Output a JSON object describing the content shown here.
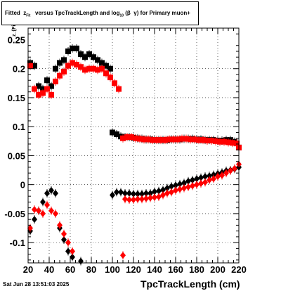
{
  "chart_data": {
    "type": "scatter",
    "title": "Fitted z_{Fit} versus TpcTrackLength and log_{10}(βγ) for Primary muon+",
    "xlabel": "TpcTrackLength (cm)",
    "ylabel": "z_{Fit}",
    "xlim": [
      20,
      220
    ],
    "ylim": [
      -0.135,
      0.27
    ],
    "x_ticks": [
      20,
      40,
      60,
      80,
      100,
      120,
      140,
      160,
      180,
      200,
      220
    ],
    "y_ticks": [
      -0.1,
      -0.05,
      0,
      0.05,
      0.1,
      0.15,
      0.2
    ],
    "y_tick_labels": [
      "-0.1",
      "-0.05",
      "0",
      "0.05",
      "0.1",
      "0.15",
      "0.2"
    ],
    "y_top_label": "0.25",
    "grid": true,
    "series": [
      {
        "marker": "square",
        "color": "#000000",
        "points": [
          [
            22,
            0.21
          ],
          [
            26,
            0.205
          ],
          [
            30,
            0.17
          ],
          [
            34,
            0.165
          ],
          [
            38,
            0.18
          ],
          [
            42,
            0.17
          ],
          [
            46,
            0.2
          ],
          [
            50,
            0.21
          ],
          [
            54,
            0.215
          ],
          [
            58,
            0.23
          ],
          [
            62,
            0.235
          ],
          [
            66,
            0.235
          ],
          [
            70,
            0.225
          ],
          [
            74,
            0.22
          ],
          [
            78,
            0.225
          ],
          [
            82,
            0.22
          ],
          [
            86,
            0.215
          ],
          [
            90,
            0.21
          ],
          [
            94,
            0.205
          ],
          [
            98,
            0.2
          ],
          [
            100,
            0.09
          ],
          [
            104,
            0.087
          ],
          [
            108,
            0.083
          ],
          [
            112,
            0.082
          ],
          [
            116,
            0.082
          ],
          [
            120,
            0.081
          ],
          [
            124,
            0.08
          ],
          [
            128,
            0.079
          ],
          [
            132,
            0.078
          ],
          [
            136,
            0.078
          ],
          [
            140,
            0.077
          ],
          [
            144,
            0.077
          ],
          [
            148,
            0.077
          ],
          [
            152,
            0.077
          ],
          [
            156,
            0.078
          ],
          [
            160,
            0.078
          ],
          [
            164,
            0.078
          ],
          [
            168,
            0.079
          ],
          [
            172,
            0.079
          ],
          [
            176,
            0.079
          ],
          [
            180,
            0.078
          ],
          [
            184,
            0.078
          ],
          [
            188,
            0.077
          ],
          [
            192,
            0.077
          ],
          [
            196,
            0.077
          ],
          [
            200,
            0.076
          ],
          [
            204,
            0.076
          ],
          [
            208,
            0.077
          ],
          [
            212,
            0.077
          ],
          [
            216,
            0.074
          ],
          [
            220,
            0.064
          ]
        ]
      },
      {
        "marker": "square",
        "color": "#ff0000",
        "points": [
          [
            22,
            0.205
          ],
          [
            26,
            0.165
          ],
          [
            30,
            0.155
          ],
          [
            34,
            0.158
          ],
          [
            38,
            0.165
          ],
          [
            42,
            0.155
          ],
          [
            46,
            0.178
          ],
          [
            50,
            0.188
          ],
          [
            54,
            0.195
          ],
          [
            58,
            0.205
          ],
          [
            62,
            0.21
          ],
          [
            66,
            0.207
          ],
          [
            70,
            0.203
          ],
          [
            74,
            0.198
          ],
          [
            78,
            0.2
          ],
          [
            82,
            0.2
          ],
          [
            86,
            0.198
          ],
          [
            90,
            0.2
          ],
          [
            94,
            0.192
          ],
          [
            98,
            0.185
          ],
          [
            102,
            0.175
          ],
          [
            106,
            0.165
          ],
          [
            110,
            0.08
          ],
          [
            114,
            0.082
          ],
          [
            118,
            0.082
          ],
          [
            122,
            0.08
          ],
          [
            126,
            0.079
          ],
          [
            130,
            0.078
          ],
          [
            134,
            0.078
          ],
          [
            138,
            0.077
          ],
          [
            142,
            0.077
          ],
          [
            146,
            0.077
          ],
          [
            150,
            0.077
          ],
          [
            154,
            0.078
          ],
          [
            158,
            0.078
          ],
          [
            162,
            0.078
          ],
          [
            166,
            0.079
          ],
          [
            170,
            0.079
          ],
          [
            174,
            0.078
          ],
          [
            178,
            0.078
          ],
          [
            182,
            0.077
          ],
          [
            186,
            0.077
          ],
          [
            190,
            0.076
          ],
          [
            194,
            0.076
          ],
          [
            198,
            0.075
          ],
          [
            202,
            0.074
          ],
          [
            206,
            0.074
          ],
          [
            210,
            0.073
          ],
          [
            214,
            0.072
          ],
          [
            218,
            0.071
          ],
          [
            220,
            0.064
          ]
        ]
      },
      {
        "marker": "diamond",
        "color": "#000000",
        "points": [
          [
            22,
            -0.08
          ],
          [
            26,
            -0.06
          ],
          [
            30,
            -0.045
          ],
          [
            34,
            -0.03
          ],
          [
            38,
            -0.015
          ],
          [
            42,
            -0.01
          ],
          [
            46,
            -0.015
          ],
          [
            50,
            -0.075
          ],
          [
            54,
            -0.095
          ],
          [
            58,
            -0.115
          ],
          [
            62,
            -0.125
          ],
          [
            70,
            -0.132
          ],
          [
            100,
            -0.018
          ],
          [
            104,
            -0.013
          ],
          [
            108,
            -0.013
          ],
          [
            112,
            -0.015
          ],
          [
            116,
            -0.015
          ],
          [
            120,
            -0.016
          ],
          [
            124,
            -0.016
          ],
          [
            128,
            -0.016
          ],
          [
            132,
            -0.015
          ],
          [
            136,
            -0.015
          ],
          [
            140,
            -0.012
          ],
          [
            144,
            -0.011
          ],
          [
            148,
            -0.009
          ],
          [
            152,
            -0.006
          ],
          [
            156,
            -0.003
          ],
          [
            160,
            -0.001
          ],
          [
            164,
            0.001
          ],
          [
            168,
            0.003
          ],
          [
            172,
            0.006
          ],
          [
            176,
            0.008
          ],
          [
            180,
            0.01
          ],
          [
            184,
            0.012
          ],
          [
            188,
            0.014
          ],
          [
            192,
            0.015
          ],
          [
            196,
            0.017
          ],
          [
            200,
            0.019
          ],
          [
            204,
            0.021
          ],
          [
            208,
            0.024
          ],
          [
            212,
            0.025
          ],
          [
            216,
            0.027
          ],
          [
            220,
            0.03
          ]
        ]
      },
      {
        "marker": "diamond",
        "color": "#ff0000",
        "points": [
          [
            22,
            -0.075
          ],
          [
            26,
            -0.043
          ],
          [
            30,
            -0.045
          ],
          [
            34,
            -0.05
          ],
          [
            38,
            -0.035
          ],
          [
            42,
            -0.045
          ],
          [
            46,
            -0.05
          ],
          [
            50,
            -0.07
          ],
          [
            54,
            -0.085
          ],
          [
            58,
            -0.1
          ],
          [
            62,
            -0.115
          ],
          [
            110,
            -0.122
          ],
          [
            112,
            -0.025
          ],
          [
            116,
            -0.026
          ],
          [
            120,
            -0.026
          ],
          [
            124,
            -0.025
          ],
          [
            128,
            -0.025
          ],
          [
            132,
            -0.024
          ],
          [
            136,
            -0.023
          ],
          [
            140,
            -0.022
          ],
          [
            144,
            -0.021
          ],
          [
            148,
            -0.018
          ],
          [
            152,
            -0.015
          ],
          [
            156,
            -0.013
          ],
          [
            160,
            -0.01
          ],
          [
            164,
            -0.008
          ],
          [
            168,
            -0.006
          ],
          [
            172,
            -0.004
          ],
          [
            176,
            -0.002
          ],
          [
            180,
            0.0
          ],
          [
            184,
            0.002
          ],
          [
            188,
            0.004
          ],
          [
            192,
            0.008
          ],
          [
            196,
            0.01
          ],
          [
            200,
            0.014
          ],
          [
            204,
            0.016
          ],
          [
            208,
            0.02
          ],
          [
            212,
            0.024
          ],
          [
            216,
            0.028
          ],
          [
            220,
            0.035
          ]
        ]
      }
    ]
  },
  "footer": {
    "timestamp": "Sat Jun 28 13:51:03 2025"
  }
}
